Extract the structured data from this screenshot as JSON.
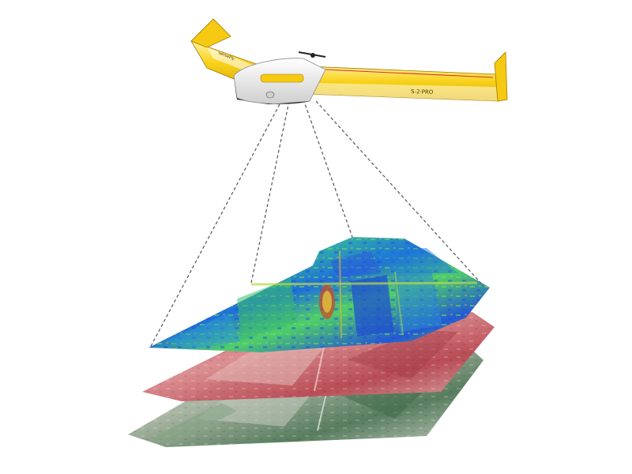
{
  "scene": {
    "subject": "fixed-wing-drone",
    "drone": {
      "wing_color": "#f6c912",
      "wing_highlight": "#fff3b0",
      "body_color": "#f2f2f2",
      "dark_color": "#2b2b2b",
      "accent_red": "#d9302c",
      "wing_text": "S-2·PRO",
      "left_wing_text": "senseFly"
    },
    "sensor_lines": {
      "count": 4,
      "style": "dashed",
      "color": "#555555"
    },
    "layers": [
      {
        "name": "ndvi-map-layer",
        "description_color": "#1fa0c8",
        "palette": [
          "#1d5fd3",
          "#1e8fd8",
          "#24b8c0",
          "#3ccf8a",
          "#7bd44a",
          "#c9c93a",
          "#d98a2a",
          "#c43a2a"
        ]
      },
      {
        "name": "red-band-layer",
        "palette": [
          "#c9545e",
          "#d88b8e",
          "#b94752",
          "#e0b0ae",
          "#9e3942"
        ]
      },
      {
        "name": "rgb-orthomosaic-layer",
        "palette": [
          "#5d8a66",
          "#8fa98a",
          "#c9cfc2",
          "#4f7656",
          "#a8b4a2"
        ]
      }
    ]
  }
}
